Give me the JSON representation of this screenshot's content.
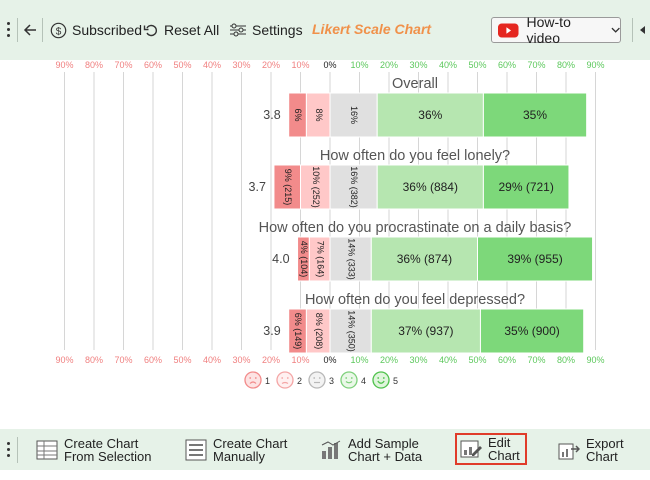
{
  "toolbar": {
    "subscribed": "Subscribed",
    "reset_all": "Reset All",
    "settings": "Settings",
    "brand": "Likert Scale Chart",
    "howto": "How-to video"
  },
  "bottombar": {
    "create_selection": [
      "Create Chart",
      "From Selection"
    ],
    "create_manual": [
      "Create Chart",
      "Manually"
    ],
    "add_sample": [
      "Add Sample",
      "Chart + Data"
    ],
    "edit_chart": [
      "Edit",
      "Chart"
    ],
    "export_chart": [
      "Export",
      "Chart"
    ]
  },
  "colors": {
    "neg_strong": "#f28b8b",
    "neg_mild": "#ffc8c8",
    "neutral": "#e0e0e0",
    "pos_mild": "#b6e6b0",
    "pos_strong": "#7dd87a",
    "axis_neg": "#f08080",
    "axis_pos": "#5cc85c",
    "accent_brand": "#f0914a"
  },
  "chart_data": {
    "type": "bar",
    "subtype": "diverging-stacked",
    "tick_labels": [
      "90%",
      "80%",
      "70%",
      "60%",
      "50%",
      "40%",
      "30%",
      "20%",
      "10%",
      "0%",
      "10%",
      "20%",
      "30%",
      "40%",
      "50%",
      "60%",
      "70%",
      "80%",
      "90%"
    ],
    "tick_values": [
      -90,
      -80,
      -70,
      -60,
      -50,
      -40,
      -30,
      -20,
      -10,
      0,
      10,
      20,
      30,
      40,
      50,
      60,
      70,
      80,
      90
    ],
    "xlim": [
      -90,
      90
    ],
    "grid": true,
    "legend_position": "bottom-left",
    "legend": [
      {
        "label": "1",
        "icon": "very-sad-face-icon"
      },
      {
        "label": "2",
        "icon": "sad-face-icon"
      },
      {
        "label": "3",
        "icon": "neutral-face-icon"
      },
      {
        "label": "4",
        "icon": "smile-face-icon"
      },
      {
        "label": "5",
        "icon": "happy-face-icon"
      }
    ],
    "questions": [
      {
        "title": "Overall",
        "score": "3.8",
        "values": [
          6,
          8,
          16,
          36,
          35
        ],
        "labels": [
          "6%",
          "8%",
          "16%",
          "36%",
          "35%"
        ]
      },
      {
        "title": "How often do you feel lonely?",
        "score": "3.7",
        "values": [
          9,
          10,
          16,
          36,
          29
        ],
        "labels": [
          "9% (215)",
          "10% (252)",
          "16% (382)",
          "36% (884)",
          "29% (721)"
        ]
      },
      {
        "title": "How often do you procrastinate on a daily basis?",
        "score": "4.0",
        "values": [
          4,
          7,
          14,
          36,
          39
        ],
        "labels": [
          "4% (104)",
          "7% (164)",
          "14% (333)",
          "36% (874)",
          "39% (955)"
        ]
      },
      {
        "title": "How often do you feel depressed?",
        "score": "3.9",
        "values": [
          6,
          8,
          14,
          37,
          35
        ],
        "labels": [
          "6% (149)",
          "8% (208)",
          "14% (350)",
          "37% (937)",
          "35% (900)"
        ]
      }
    ]
  }
}
